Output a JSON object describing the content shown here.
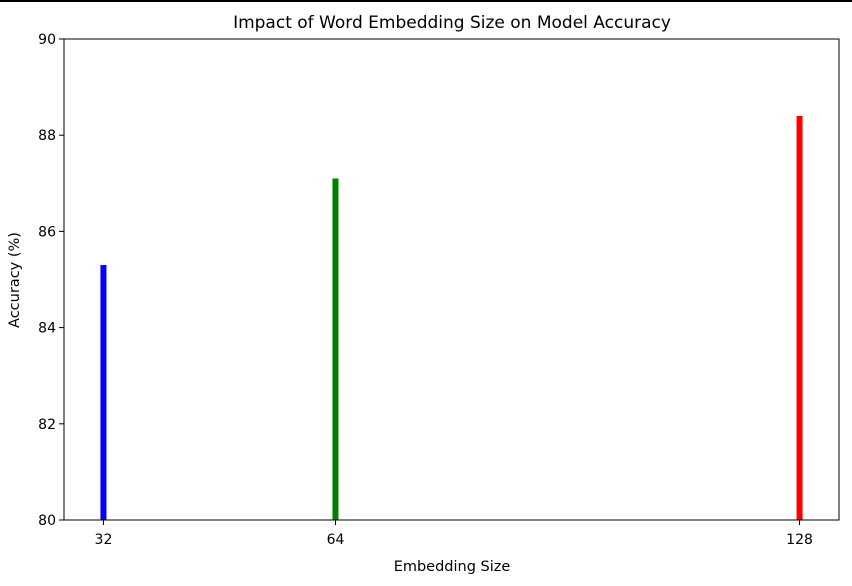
{
  "chart_data": {
    "type": "bar",
    "title": "Impact of Word Embedding Size on Model Accuracy",
    "xlabel": "Embedding Size",
    "ylabel": "Accuracy (%)",
    "x": [
      32,
      64,
      128
    ],
    "categories": [
      "32",
      "64",
      "128"
    ],
    "values": [
      85.3,
      87.1,
      88.4
    ],
    "colors": [
      "#0000ff",
      "#008000",
      "#ff0000"
    ],
    "xlim": [
      26.56,
      133.44
    ],
    "ylim": [
      80,
      90
    ],
    "yticks": [
      80,
      82,
      84,
      86,
      88,
      90
    ],
    "grid": false,
    "legend": "none"
  }
}
